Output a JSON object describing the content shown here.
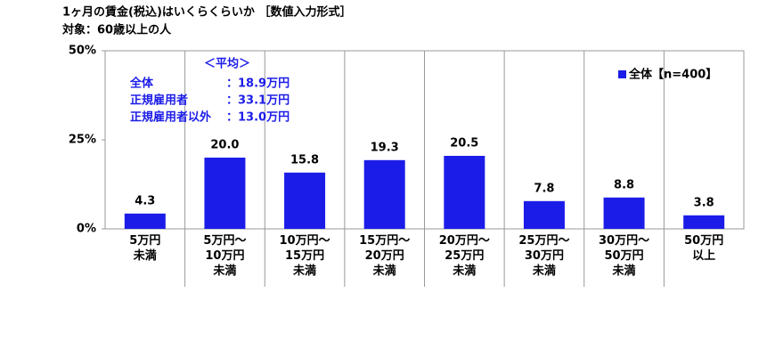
{
  "chart_data": {
    "type": "bar",
    "title": "1ヶ月の賃金(税込)はいくらくらいか ［数値入力形式］",
    "subtitle": "対象：60歳以上の人",
    "categories": [
      "5万円\n未満",
      "5万円～\n10万円\n未満",
      "10万円～\n15万円\n未満",
      "15万円～\n20万円\n未満",
      "20万円～\n25万円\n未満",
      "25万円～\n30万円\n未満",
      "30万円～\n50万円\n未満",
      "50万円\n以上"
    ],
    "series": [
      {
        "name": "全体【n=400】",
        "color": "#1c1ce8",
        "values": [
          4.3,
          20,
          15.8,
          19.3,
          20.5,
          7.8,
          8.8,
          3.8
        ],
        "value_labels": [
          "4.3",
          "20.0",
          "15.8",
          "19.3",
          "20.5",
          "7.8",
          "8.8",
          "3.8"
        ]
      }
    ],
    "ylim": [
      0,
      50
    ],
    "yticks": [
      {
        "value": 0,
        "label": "0%"
      },
      {
        "value": 25,
        "label": "25%"
      },
      {
        "value": 50,
        "label": "50%"
      }
    ],
    "legend": "top-right",
    "annotation": {
      "title": "＜平均＞",
      "rows": [
        [
          "全体",
          "：18.9万円"
        ],
        [
          "正規雇用者",
          "：33.1万円"
        ],
        [
          "正規雇用者以外",
          "：13.0万円"
        ]
      ]
    }
  }
}
